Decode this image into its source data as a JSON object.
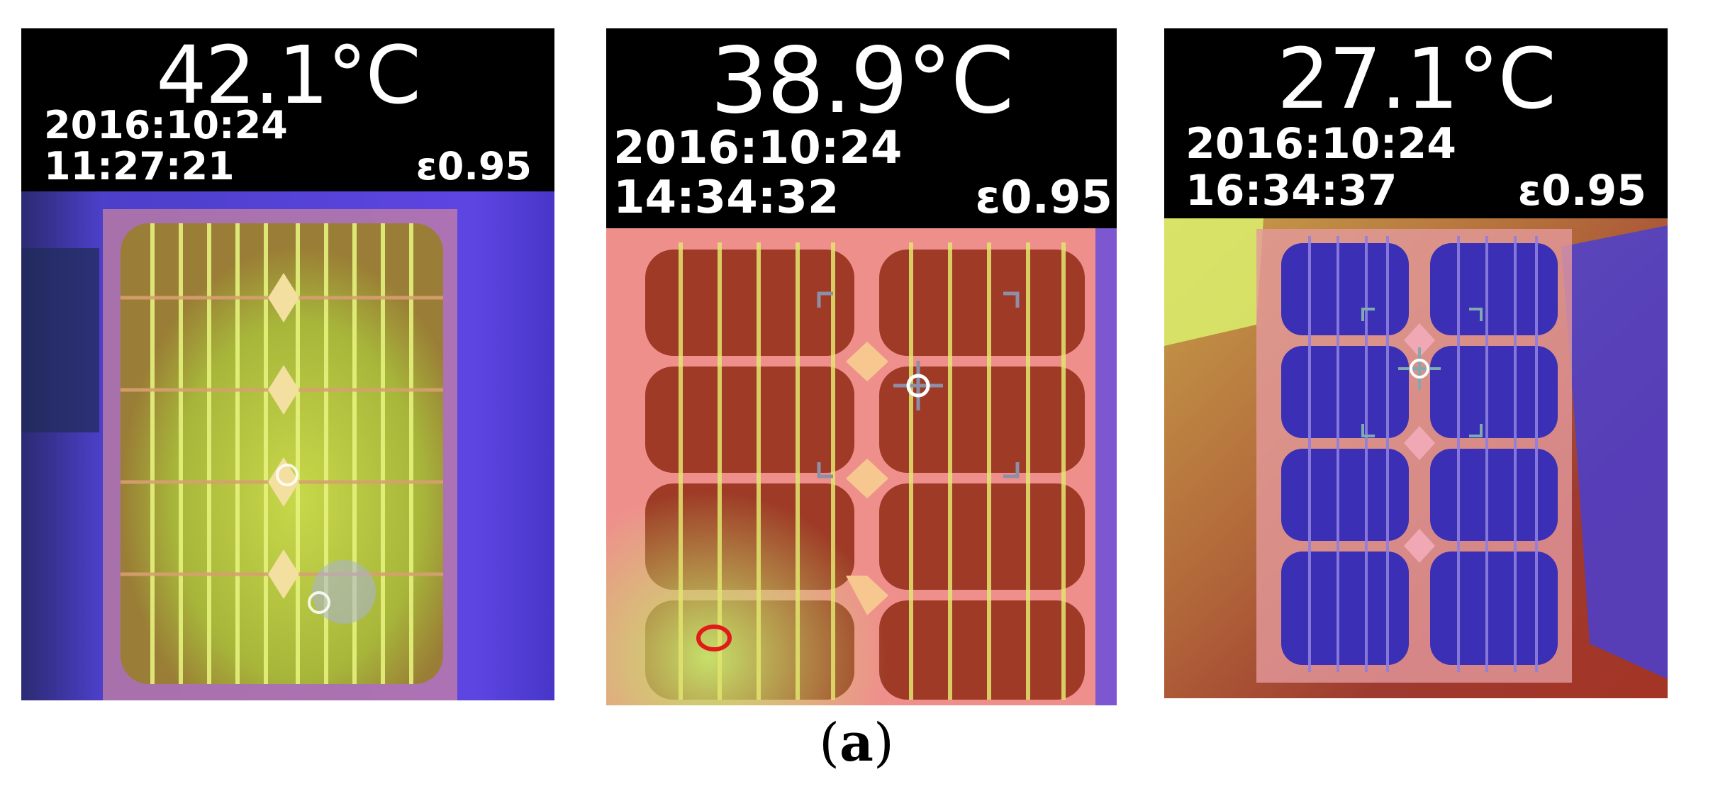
{
  "panels": [
    {
      "temperature": "42.1°C",
      "date": "2016:10:24",
      "time": "11:27:21",
      "emissivity": "ε0.95"
    },
    {
      "temperature": "38.9°C",
      "date": "2016:10:24",
      "time": "14:34:32",
      "emissivity": "ε0.95"
    },
    {
      "temperature": "27.1°C",
      "date": "2016:10:24",
      "time": "16:34:37",
      "emissivity": "ε0.95"
    }
  ],
  "caption": {
    "open": "(",
    "letter": "a",
    "close": ")"
  },
  "colors": {
    "panel1_cells": "#a7b63a",
    "panel2_cells": "#a23a24",
    "panel3_cells": "#3a2fb3",
    "background_purple": "#5a3fd6",
    "frame_pink": "#f08a8f",
    "grid_yellow": "#e3f07a"
  }
}
